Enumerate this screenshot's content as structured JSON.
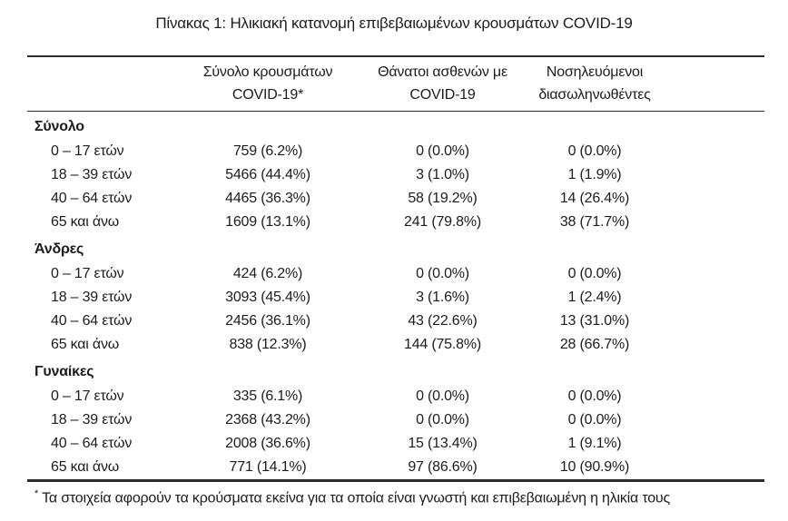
{
  "title": "Πίνακας 1: Ηλικιακή κατανομή επιβεβαιωμένων κρουσμάτων COVID-19",
  "colors": {
    "text": "#1c1c1c",
    "rule_lines": "#2b2b2b",
    "background": "#ffffff"
  },
  "table": {
    "columns": [
      {
        "line1": "Σύνολο κρουσμάτων",
        "line2": "COVID-19*"
      },
      {
        "line1": "Θάνατοι ασθενών με",
        "line2": "COVID-19"
      },
      {
        "line1": "Νοσηλευόμενοι",
        "line2": "διασωληνωθέντες"
      }
    ],
    "sections": [
      {
        "label": "Σύνολο",
        "rows": [
          {
            "label": "0 – 17 ετών",
            "cases": "759 (6.2%)",
            "deaths": "0 (0.0%)",
            "intubated": "0 (0.0%)"
          },
          {
            "label": "18 – 39 ετών",
            "cases": "5466 (44.4%)",
            "deaths": "3 (1.0%)",
            "intubated": "1 (1.9%)"
          },
          {
            "label": "40 – 64 ετών",
            "cases": "4465 (36.3%)",
            "deaths": "58 (19.2%)",
            "intubated": "14 (26.4%)"
          },
          {
            "label": "65 και άνω",
            "cases": "1609 (13.1%)",
            "deaths": "241 (79.8%)",
            "intubated": "38 (71.7%)"
          }
        ]
      },
      {
        "label": "Άνδρες",
        "rows": [
          {
            "label": "0 – 17 ετών",
            "cases": "424 (6.2%)",
            "deaths": "0 (0.0%)",
            "intubated": "0 (0.0%)"
          },
          {
            "label": "18 – 39 ετών",
            "cases": "3093 (45.4%)",
            "deaths": "3 (1.6%)",
            "intubated": "1 (2.4%)"
          },
          {
            "label": "40 – 64 ετών",
            "cases": "2456 (36.1%)",
            "deaths": "43 (22.6%)",
            "intubated": "13 (31.0%)"
          },
          {
            "label": "65 και άνω",
            "cases": "838 (12.3%)",
            "deaths": "144 (75.8%)",
            "intubated": "28 (66.7%)"
          }
        ]
      },
      {
        "label": "Γυναίκες",
        "rows": [
          {
            "label": "0 – 17 ετών",
            "cases": "335 (6.1%)",
            "deaths": "0 (0.0%)",
            "intubated": "0 (0.0%)"
          },
          {
            "label": "18 – 39 ετών",
            "cases": "2368 (43.2%)",
            "deaths": "0 (0.0%)",
            "intubated": "0 (0.0%)"
          },
          {
            "label": "40 – 64 ετών",
            "cases": "2008 (36.6%)",
            "deaths": "15 (13.4%)",
            "intubated": "1 (9.1%)"
          },
          {
            "label": "65 και άνω",
            "cases": "771 (14.1%)",
            "deaths": "97 (86.6%)",
            "intubated": "10 (90.9%)"
          }
        ]
      }
    ]
  },
  "footnote": {
    "marker": "*",
    "text": "Τα στοιχεία αφορούν τα κρούσματα εκείνα για τα οποία είναι γνωστή και επιβεβαιωμένη η ηλικία τους"
  }
}
